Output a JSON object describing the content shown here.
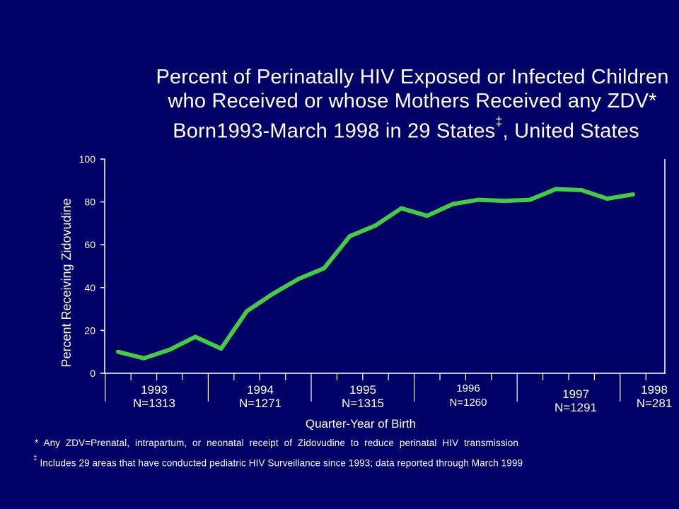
{
  "title": {
    "line1": "Percent of Perinatally HIV Exposed or Infected Children",
    "line2": "who Received or whose Mothers Received any ZDV*",
    "line3_main": "Born1993-March 1998 in 29 States",
    "line3_dagger": "‡",
    "line3_tail": ", United States"
  },
  "chart_data": {
    "type": "line",
    "title": "Percent of Perinatally HIV Exposed or Infected Children who Received or whose Mothers Received any ZDV* Born1993-March 1998 in 29 States‡, United States",
    "xlabel": "Quarter-Year of Birth",
    "ylabel": "Percent Receiving Zidovudine",
    "ylim": [
      0,
      100
    ],
    "yticks": [
      0,
      20,
      40,
      60,
      80,
      100
    ],
    "grid": false,
    "legend": "none",
    "line_color": "#44cc44",
    "x": [
      "1993 Q1",
      "1993 Q2",
      "1993 Q3",
      "1993 Q4",
      "1994 Q1",
      "1994 Q2",
      "1994 Q3",
      "1994 Q4",
      "1995 Q1",
      "1995 Q2",
      "1995 Q3",
      "1995 Q4",
      "1996 Q1",
      "1996 Q2",
      "1996 Q3",
      "1996 Q4",
      "1997 Q1",
      "1997 Q2",
      "1997 Q3",
      "1997 Q4",
      "1998 Q1"
    ],
    "series": [
      {
        "values": [
          10,
          7,
          11,
          17,
          11.5,
          29,
          37,
          44,
          49,
          64,
          69,
          77,
          73.5,
          79,
          81,
          80.5,
          81,
          86,
          85.5,
          81.5,
          83.5
        ]
      }
    ],
    "year_groups": [
      {
        "year": "1993",
        "n": "N=1313"
      },
      {
        "year": "1994",
        "n": "N=1271"
      },
      {
        "year": "1995",
        "n": "N=1315"
      },
      {
        "year": "1996",
        "n": "N=1260"
      },
      {
        "year": "1997",
        "n": "N=1291"
      },
      {
        "year": "1998",
        "n": "N=281"
      }
    ]
  },
  "footnotes": {
    "star": "* Any ZDV=Prenatal, intrapartum, or neonatal receipt of Zidovudine to reduce perinatal HIV transmission",
    "dagger_mark": "‡",
    "dagger_text": "Includes 29 areas that have conducted pediatric HIV Surveillance since 1993; data reported through March 1999"
  }
}
